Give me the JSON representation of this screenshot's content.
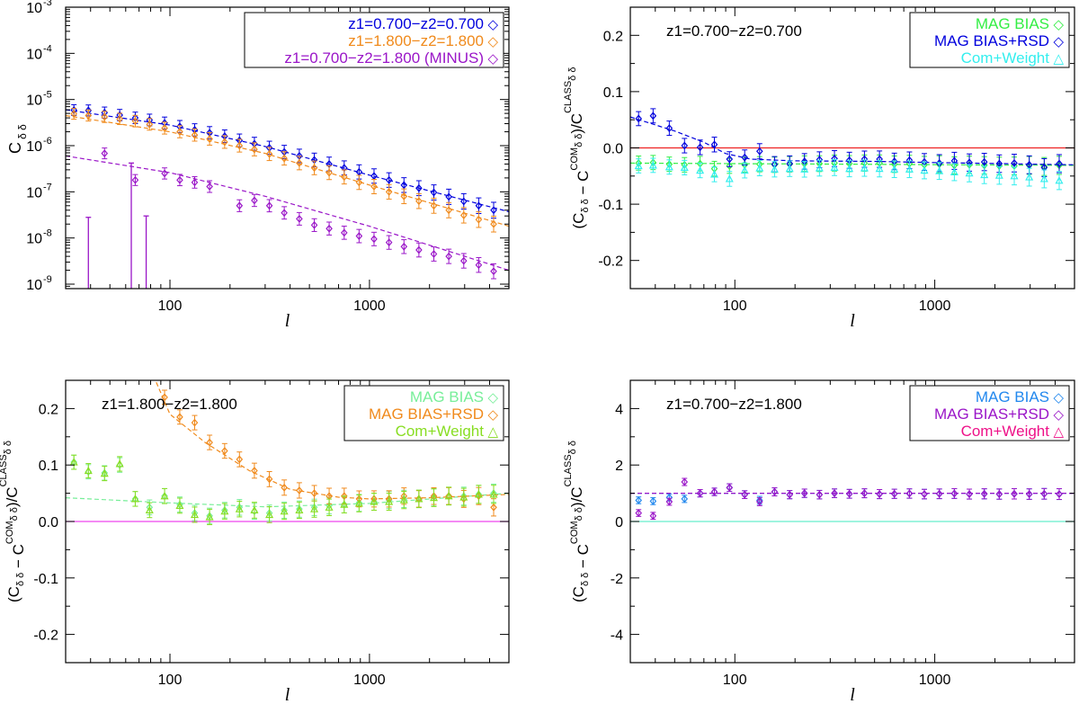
{
  "colors": {
    "blue": "#0000dd",
    "orange": "#f08a1c",
    "purple": "#9a16c8",
    "green": "#33ee44",
    "lightgreen": "#77ee99",
    "yellowgreen": "#88dd22",
    "cyan": "#33eeee",
    "mint": "#66eecc",
    "magenta": "#ee44ee",
    "skyblue": "#2288ee",
    "pink": "#ee1188",
    "red": "#ee2222"
  },
  "chart_data": [
    {
      "type": "scatter",
      "panel": "top-left",
      "yscale": "log",
      "xscale": "log",
      "xlim": [
        30,
        5000
      ],
      "ylim": [
        8e-10,
        0.001
      ],
      "xlabel": "l",
      "ylabel": "C",
      "ylabel_sub": "δ δ",
      "x_ticks": [
        "100",
        "1000"
      ],
      "y_ticks": [
        "10",
        "10",
        "10",
        "10",
        "10",
        "10",
        "10"
      ],
      "y_tick_exps": [
        "-9",
        "-8",
        "-7",
        "-6",
        "-5",
        "-4",
        "-3"
      ],
      "legend_position": "top-right",
      "series": [
        {
          "name": "z1=0.700−z2=0.700",
          "legend_symbol": "◇",
          "color": "blue",
          "x": [
            33,
            39,
            47,
            56,
            67,
            79,
            94,
            112,
            133,
            158,
            188,
            223,
            265,
            315,
            374,
            445,
            529,
            628,
            747,
            887,
            1054,
            1253,
            1489,
            1769,
            2102,
            2498,
            2969,
            3528,
            4192
          ],
          "y": [
            5.9e-06,
            5.8e-06,
            5.2e-06,
            4.6e-06,
            4e-06,
            3.6e-06,
            3.1e-06,
            2.6e-06,
            2.2e-06,
            1.9e-06,
            1.6e-06,
            1.3e-06,
            1.1e-06,
            9e-07,
            7.3e-07,
            6e-07,
            4.9e-07,
            4e-07,
            3.3e-07,
            2.7e-07,
            2.2e-07,
            1.8e-07,
            1.4e-07,
            1.2e-07,
            9.7e-08,
            7.8e-08,
            6.2e-08,
            5e-08,
            4e-08
          ],
          "model_x": [
            30,
            100,
            300,
            1000,
            5000
          ],
          "model_y": [
            6e-06,
            2.8e-06,
            9.6e-07,
            2.3e-07,
            3.7e-08
          ]
        },
        {
          "name": "z1=1.800−z2=1.800",
          "legend_symbol": "◇",
          "color": "orange",
          "x": [
            33,
            39,
            47,
            56,
            67,
            79,
            94,
            112,
            133,
            158,
            188,
            223,
            265,
            315,
            374,
            445,
            529,
            628,
            747,
            887,
            1054,
            1253,
            1489,
            1769,
            2102,
            2498,
            2969,
            3528,
            4192
          ],
          "y": [
            4.9e-06,
            4.5e-06,
            4.2e-06,
            3.8e-06,
            3.4e-06,
            2.9e-06,
            2.4e-06,
            2e-06,
            1.7e-06,
            1.4e-06,
            1.2e-06,
            1e-06,
            8.3e-07,
            6.6e-07,
            5.3e-07,
            4.2e-07,
            3.3e-07,
            2.6e-07,
            2.1e-07,
            1.6e-07,
            1.3e-07,
            1e-07,
            8e-08,
            6.3e-08,
            5e-08,
            4e-08,
            3.1e-08,
            2.5e-08,
            2e-08
          ],
          "model_x": [
            30,
            100,
            300,
            1000,
            5000
          ],
          "model_y": [
            4.5e-06,
            2e-06,
            6.8e-07,
            1.4e-07,
            1.8e-08
          ]
        },
        {
          "name": "z1=0.700−z2=1.800 (MINUS)",
          "legend_symbol": "◇",
          "color": "purple",
          "x": [
            47,
            67,
            94,
            112,
            133,
            158,
            223,
            265,
            315,
            374,
            445,
            529,
            628,
            747,
            887,
            1054,
            1253,
            1489,
            1769,
            2102,
            2498,
            2969,
            3528,
            4192
          ],
          "y": [
            6.8e-07,
            1.8e-07,
            2.5e-07,
            1.8e-07,
            1.6e-07,
            1.3e-07,
            5e-08,
            6.5e-08,
            5e-08,
            3.5e-08,
            2.6e-08,
            1.9e-08,
            1.6e-08,
            1.3e-08,
            1.1e-08,
            9.5e-09,
            8e-09,
            6.5e-09,
            5.5e-09,
            4.5e-09,
            4e-09,
            3.2e-09,
            2.6e-09,
            1.9e-09
          ],
          "model_x": [
            30,
            100,
            300,
            1000,
            5000
          ],
          "model_y": [
            6e-07,
            2.6e-07,
            8e-08,
            1.8e-08,
            2e-09
          ]
        }
      ]
    },
    {
      "type": "scatter",
      "panel": "top-right",
      "xscale": "log",
      "xlim": [
        30,
        5000
      ],
      "ylim": [
        -0.25,
        0.25
      ],
      "xlabel": "l",
      "ylabel": "(C",
      "annotation": "z1=0.700−z2=0.700",
      "x_ticks": [
        "100",
        "1000"
      ],
      "y_ticks": [
        "-0.2",
        "-0.1",
        "0.0",
        "0.1",
        "0.2"
      ],
      "legend_position": "top-right",
      "reference_line": {
        "y": 0.0,
        "color": "red"
      },
      "series": [
        {
          "name": "MAG BIAS",
          "legend_symbol": "◇",
          "color": "green",
          "x": [
            33,
            39,
            47,
            56,
            67,
            79,
            94,
            112,
            133,
            158,
            188,
            223,
            265,
            315,
            374,
            445,
            529,
            628,
            747,
            887,
            1054,
            1253,
            1489,
            1769,
            2102,
            2498,
            2969,
            3528,
            4192
          ],
          "y": [
            -0.027,
            -0.026,
            -0.029,
            -0.03,
            -0.028,
            -0.037,
            -0.032,
            -0.03,
            -0.029,
            -0.03,
            -0.029,
            -0.028,
            -0.028,
            -0.027,
            -0.028,
            -0.027,
            -0.027,
            -0.029,
            -0.028,
            -0.03,
            -0.029,
            -0.031,
            -0.03,
            -0.031,
            -0.032,
            -0.032,
            -0.031,
            -0.033,
            -0.031
          ],
          "model_x": [
            30,
            5000
          ],
          "model_y": [
            -0.027,
            -0.031
          ]
        },
        {
          "name": "MAG BIAS+RSD",
          "legend_symbol": "◇",
          "color": "blue",
          "x": [
            33,
            39,
            47,
            56,
            67,
            79,
            94,
            112,
            133,
            158,
            188,
            223,
            265,
            315,
            374,
            445,
            529,
            628,
            747,
            887,
            1054,
            1253,
            1489,
            1769,
            2102,
            2498,
            2969,
            3528,
            4192
          ],
          "y": [
            0.052,
            0.057,
            0.035,
            0.004,
            0.001,
            0.006,
            -0.02,
            -0.017,
            -0.006,
            -0.029,
            -0.028,
            -0.024,
            -0.021,
            -0.019,
            -0.022,
            -0.02,
            -0.02,
            -0.024,
            -0.022,
            -0.025,
            -0.027,
            -0.023,
            -0.026,
            -0.025,
            -0.028,
            -0.027,
            -0.03,
            -0.035,
            -0.028
          ],
          "model_x": [
            30,
            50,
            70,
            90,
            120,
            200,
            500,
            1000,
            5000
          ],
          "model_y": [
            0.055,
            0.03,
            0.01,
            -0.01,
            -0.02,
            -0.023,
            -0.024,
            -0.026,
            -0.03
          ]
        },
        {
          "name": "Com+Weight",
          "legend_symbol": "△",
          "color": "cyan",
          "x": [
            33,
            39,
            47,
            56,
            67,
            79,
            94,
            112,
            133,
            158,
            188,
            223,
            265,
            315,
            374,
            445,
            529,
            628,
            747,
            887,
            1054,
            1253,
            1489,
            1769,
            2102,
            2498,
            2969,
            3528,
            4192
          ],
          "y": [
            -0.032,
            -0.031,
            -0.034,
            -0.035,
            -0.04,
            -0.047,
            -0.055,
            -0.04,
            -0.036,
            -0.038,
            -0.037,
            -0.038,
            -0.036,
            -0.035,
            -0.037,
            -0.036,
            -0.037,
            -0.038,
            -0.038,
            -0.04,
            -0.041,
            -0.043,
            -0.045,
            -0.048,
            -0.049,
            -0.05,
            -0.052,
            -0.055,
            -0.058
          ]
        }
      ]
    },
    {
      "type": "scatter",
      "panel": "bottom-left",
      "xscale": "log",
      "xlim": [
        30,
        5000
      ],
      "ylim": [
        -0.25,
        0.25
      ],
      "xlabel": "l",
      "ylabel": "(C",
      "annotation": "z1=1.800−z2=1.800",
      "x_ticks": [
        "100",
        "1000"
      ],
      "y_ticks": [
        "-0.2",
        "-0.1",
        "0.0",
        "0.1",
        "0.2"
      ],
      "legend_position": "top-right",
      "reference_line": {
        "y": 0.0,
        "color": "magenta"
      },
      "series": [
        {
          "name": "MAG BIAS",
          "legend_symbol": "◇",
          "color": "lightgreen",
          "x": [
            33,
            39,
            47,
            56,
            67,
            79,
            94,
            112,
            133,
            158,
            188,
            223,
            265,
            315,
            374,
            445,
            529,
            628,
            747,
            887,
            1054,
            1253,
            1489,
            1769,
            2102,
            2498,
            2969,
            3528,
            4192
          ],
          "y": [
            0.105,
            0.088,
            0.086,
            0.1,
            0.04,
            0.025,
            0.045,
            0.03,
            0.015,
            0.01,
            0.02,
            0.025,
            0.018,
            0.015,
            0.02,
            0.022,
            0.025,
            0.028,
            0.03,
            0.033,
            0.035,
            0.038,
            0.04,
            0.04,
            0.043,
            0.045,
            0.045,
            0.048,
            0.05
          ],
          "model_x": [
            30,
            100,
            300,
            1000,
            5000
          ],
          "model_y": [
            0.042,
            0.033,
            0.026,
            0.032,
            0.05
          ]
        },
        {
          "name": "MAG BIAS+RSD",
          "legend_symbol": "◇",
          "color": "orange",
          "x": [
            94,
            112,
            133,
            158,
            188,
            223,
            265,
            315,
            374,
            445,
            529,
            628,
            747,
            887,
            1054,
            1253,
            1489,
            1769,
            2102,
            2498,
            2969,
            3528,
            4192
          ],
          "y": [
            0.22,
            0.185,
            0.175,
            0.14,
            0.125,
            0.11,
            0.09,
            0.075,
            0.06,
            0.055,
            0.05,
            0.045,
            0.045,
            0.04,
            0.04,
            0.04,
            0.045,
            0.04,
            0.045,
            0.045,
            0.04,
            0.045,
            0.025
          ],
          "model_x": [
            80,
            100,
            150,
            250,
            400,
            700,
            1000,
            2000,
            5000
          ],
          "model_y": [
            0.27,
            0.19,
            0.14,
            0.09,
            0.057,
            0.043,
            0.04,
            0.042,
            0.048
          ]
        },
        {
          "name": "Com+Weight",
          "legend_symbol": "△",
          "color": "yellowgreen",
          "x": [
            33,
            39,
            47,
            56,
            67,
            79,
            94,
            112,
            133,
            158,
            188,
            223,
            265,
            315,
            374,
            445,
            529,
            628,
            747,
            887,
            1054,
            1253,
            1489,
            1769,
            2102,
            2498,
            2969,
            3528,
            4192
          ],
          "y": [
            0.105,
            0.09,
            0.085,
            0.102,
            0.04,
            0.02,
            0.045,
            0.028,
            0.012,
            0.008,
            0.018,
            0.022,
            0.02,
            0.012,
            0.018,
            0.02,
            0.022,
            0.025,
            0.03,
            0.032,
            0.035,
            0.035,
            0.038,
            0.04,
            0.042,
            0.045,
            0.043,
            0.048,
            0.048
          ]
        }
      ]
    },
    {
      "type": "scatter",
      "panel": "bottom-right",
      "xscale": "log",
      "xlim": [
        30,
        5000
      ],
      "ylim": [
        -5,
        5
      ],
      "xlabel": "l",
      "ylabel": "(C",
      "annotation": "z1=0.700−z2=1.800",
      "x_ticks": [
        "100",
        "1000"
      ],
      "y_ticks": [
        "-4",
        "-2",
        "0",
        "2",
        "4"
      ],
      "legend_position": "top-right",
      "reference_line": {
        "y": 0.0,
        "color": "mint"
      },
      "series": [
        {
          "name": "MAG BIAS",
          "legend_symbol": "◇",
          "color": "skyblue",
          "x": [
            33,
            39,
            47,
            56,
            67,
            79,
            94,
            112,
            133,
            158,
            188,
            223,
            265,
            315,
            374,
            445,
            529,
            628,
            747,
            887,
            1054,
            1253,
            1489,
            1769,
            2102,
            2498,
            2969,
            3528,
            4192
          ],
          "y": [
            0.75,
            0.72,
            0.85,
            0.8,
            1.0,
            1.05,
            1.2,
            0.95,
            0.75,
            1.05,
            0.95,
            1.0,
            0.95,
            1.0,
            0.98,
            1.0,
            0.97,
            0.98,
            0.99,
            0.97,
            0.98,
            0.99,
            0.97,
            0.98,
            0.97,
            0.98,
            0.97,
            0.98,
            0.97
          ],
          "model_x": [
            30,
            5000
          ],
          "model_y": [
            1.0,
            1.0
          ]
        },
        {
          "name": "MAG BIAS+RSD",
          "legend_symbol": "◇",
          "color": "purple",
          "x": [
            33,
            39,
            47,
            56,
            67,
            79,
            94,
            112,
            133,
            158,
            188,
            223,
            265,
            315,
            374,
            445,
            529,
            628,
            747,
            887,
            1054,
            1253,
            1489,
            1769,
            2102,
            2498,
            2969,
            3528,
            4192
          ],
          "y": [
            0.3,
            0.2,
            0.7,
            1.4,
            1.0,
            1.05,
            1.2,
            0.95,
            0.7,
            1.05,
            0.95,
            1.0,
            0.95,
            1.0,
            0.98,
            1.0,
            0.97,
            0.98,
            0.99,
            0.97,
            0.98,
            0.99,
            0.97,
            0.98,
            0.97,
            0.98,
            0.97,
            0.98,
            0.97
          ],
          "model_x": [
            30,
            5000
          ],
          "model_y": [
            1.0,
            1.0
          ]
        },
        {
          "name": "Com+Weight",
          "legend_symbol": "△",
          "color": "pink",
          "x": [],
          "y": []
        }
      ]
    }
  ]
}
